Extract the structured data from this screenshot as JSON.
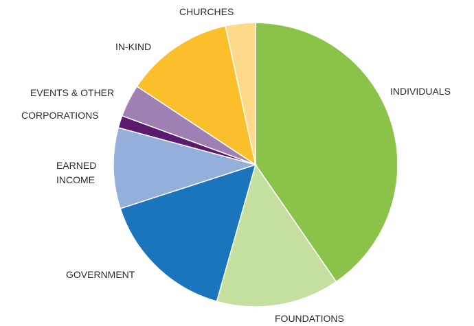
{
  "chart_data": {
    "type": "pie",
    "title": "",
    "start_angle_deg": 0,
    "direction": "clockwise",
    "slices": [
      {
        "label": [
          "INDIVIDUALS"
        ],
        "value": 40.4,
        "color": "#8bc34a"
      },
      {
        "label": [
          "FOUNDATIONS"
        ],
        "value": 14.0,
        "color": "#c4df9f"
      },
      {
        "label": [
          "GOVERNMENT"
        ],
        "value": 15.6,
        "color": "#1a75bc"
      },
      {
        "label": [
          "EARNED",
          "INCOME"
        ],
        "value": 9.2,
        "color": "#94afd9"
      },
      {
        "label": [
          "CORPORATIONS"
        ],
        "value": 1.4,
        "color": "#5b1a6e"
      },
      {
        "label": [
          "EVENTS & OTHER"
        ],
        "value": 3.7,
        "color": "#a07fb3"
      },
      {
        "label": [
          "IN-KIND"
        ],
        "value": 12.3,
        "color": "#fbbf2c"
      },
      {
        "label": [
          "CHURCHES"
        ],
        "value": 3.4,
        "color": "#fdd98a"
      }
    ]
  }
}
